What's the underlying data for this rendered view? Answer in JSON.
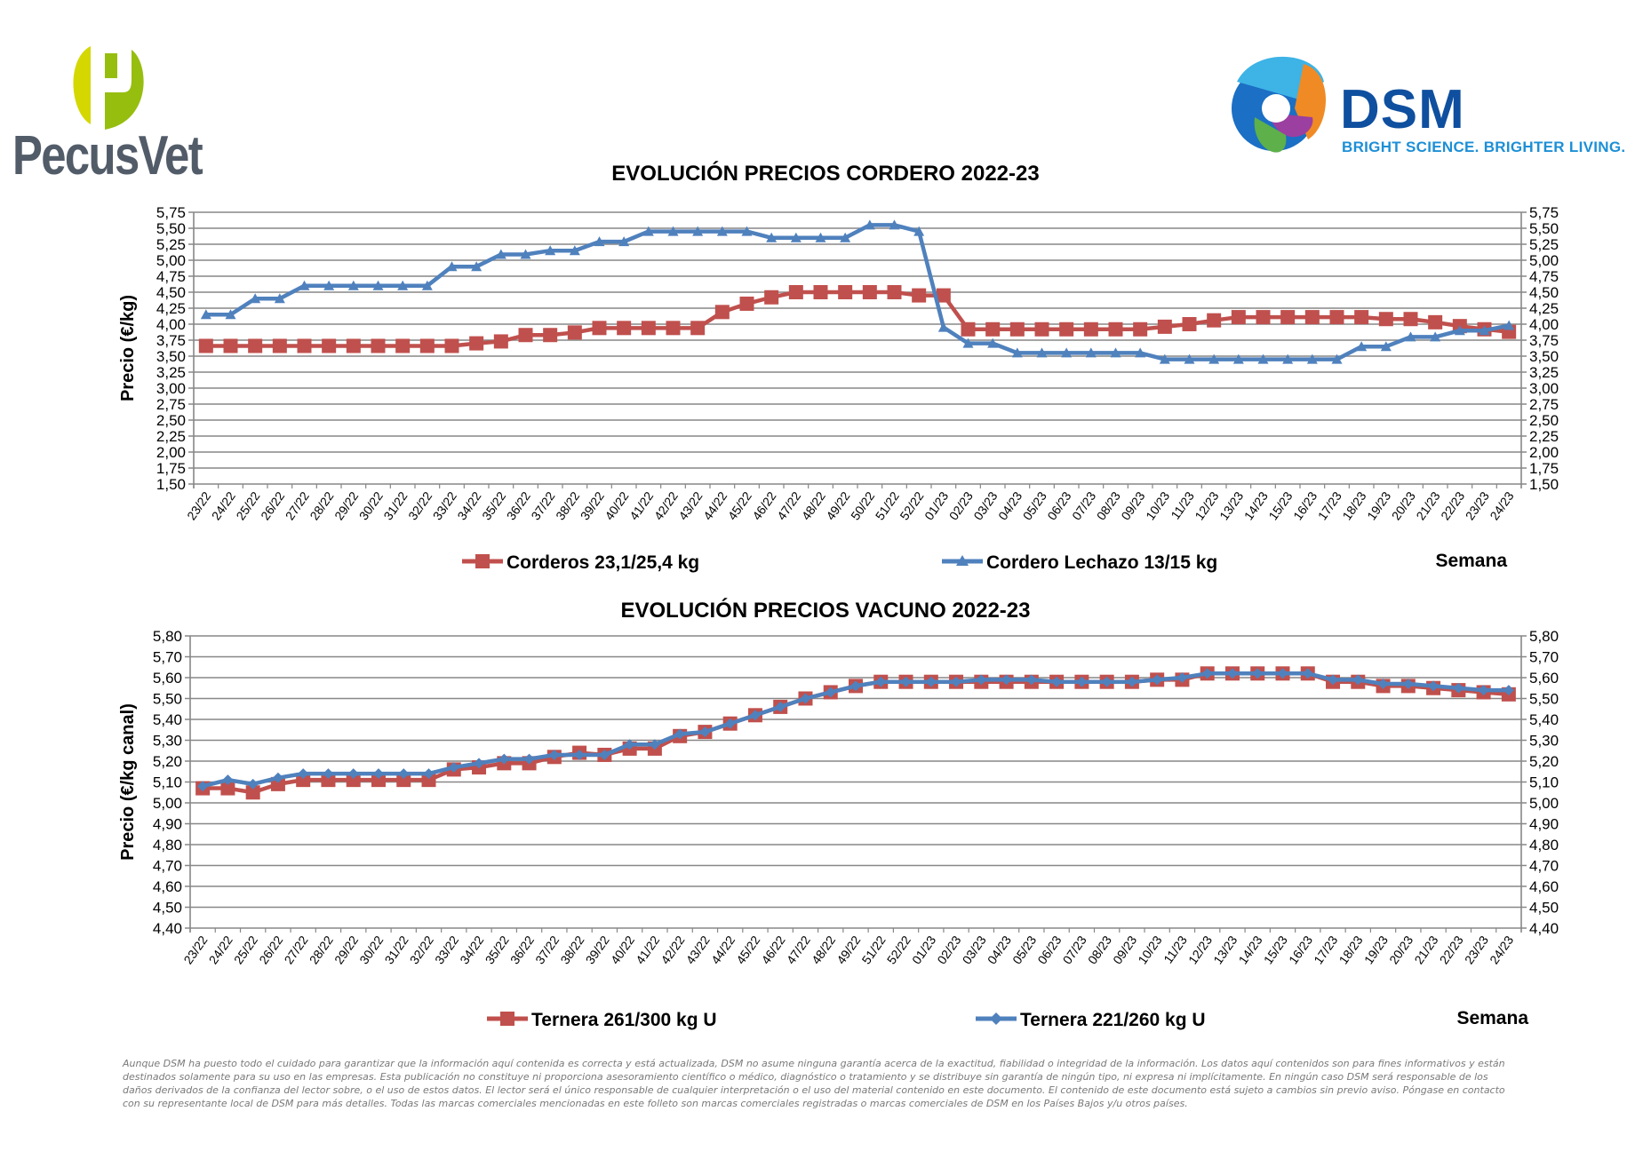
{
  "logos": {
    "left": {
      "name": "PecusVet",
      "colors": {
        "light": "#d4d800",
        "dark": "#96be0f",
        "text": "#525c69"
      }
    },
    "right": {
      "name": "DSM",
      "tagline": "BRIGHT SCIENCE. BRIGHTER LIVING.",
      "colors": {
        "text": "#0f4f9f",
        "tagline": "#1d8fd6"
      }
    }
  },
  "chart_data": [
    {
      "type": "line",
      "title": "EVOLUCIÓN PRECIOS CORDERO 2022-23",
      "ylabel": "Precio (€/kg)",
      "xlabel": "Semana",
      "ylim": [
        1.5,
        5.75
      ],
      "ystep": 0.25,
      "yticks": [
        "1,50",
        "1,75",
        "2,00",
        "2,25",
        "2,50",
        "2,75",
        "3,00",
        "3,25",
        "3,50",
        "3,75",
        "4,00",
        "4,25",
        "4,50",
        "4,75",
        "5,00",
        "5,25",
        "5,50",
        "5,75"
      ],
      "grid": true,
      "legend_position": "bottom",
      "categories": [
        "23/22",
        "24/22",
        "25/22",
        "26/22",
        "27/22",
        "28/22",
        "29/22",
        "30/22",
        "31/22",
        "32/22",
        "33/22",
        "34/22",
        "35/22",
        "36/22",
        "37/22",
        "38/22",
        "39/22",
        "40/22",
        "41/22",
        "42/22",
        "43/22",
        "44/22",
        "45/22",
        "46/22",
        "47/22",
        "48/22",
        "49/22",
        "50/22",
        "51/22",
        "52/22",
        "01/23",
        "02/23",
        "03/23",
        "04/23",
        "05/23",
        "06/23",
        "07/23",
        "08/23",
        "09/23",
        "10/23",
        "11/23",
        "12/23",
        "13/23",
        "14/23",
        "15/23",
        "16/23",
        "17/23",
        "18/23",
        "19/23",
        "20/23",
        "21/23",
        "22/23",
        "23/23",
        "24/23"
      ],
      "series": [
        {
          "name": "Corderos 23,1/25,4 kg",
          "color": "#c0504d",
          "marker": "square",
          "values": [
            3.66,
            3.66,
            3.66,
            3.66,
            3.66,
            3.66,
            3.66,
            3.66,
            3.66,
            3.66,
            3.66,
            3.7,
            3.73,
            3.83,
            3.83,
            3.87,
            3.94,
            3.94,
            3.94,
            3.94,
            3.94,
            4.19,
            4.32,
            4.42,
            4.5,
            4.5,
            4.5,
            4.5,
            4.5,
            4.45,
            4.45,
            3.92,
            3.92,
            3.92,
            3.92,
            3.92,
            3.92,
            3.92,
            3.92,
            3.96,
            4.0,
            4.06,
            4.11,
            4.11,
            4.11,
            4.11,
            4.11,
            4.11,
            4.08,
            4.08,
            4.03,
            3.97,
            3.92,
            3.88
          ]
        },
        {
          "name": "Cordero Lechazo 13/15 kg",
          "color": "#4f81bd",
          "marker": "triangle",
          "values": [
            4.15,
            4.15,
            4.4,
            4.4,
            4.6,
            4.6,
            4.6,
            4.6,
            4.6,
            4.6,
            4.9,
            4.9,
            5.09,
            5.09,
            5.15,
            5.15,
            5.29,
            5.29,
            5.45,
            5.45,
            5.45,
            5.45,
            5.45,
            5.35,
            5.35,
            5.35,
            5.35,
            5.55,
            5.55,
            5.45,
            3.95,
            3.7,
            3.7,
            3.55,
            3.55,
            3.55,
            3.55,
            3.55,
            3.55,
            3.45,
            3.45,
            3.45,
            3.45,
            3.45,
            3.45,
            3.45,
            3.45,
            3.65,
            3.65,
            3.8,
            3.8,
            3.9,
            3.9,
            3.98
          ]
        }
      ]
    },
    {
      "type": "line",
      "title": "EVOLUCIÓN PRECIOS VACUNO 2022-23",
      "ylabel": "Precio (€/kg canal)",
      "xlabel": "Semana",
      "ylim": [
        4.4,
        5.8
      ],
      "ystep": 0.1,
      "yticks": [
        "4,40",
        "4,50",
        "4,60",
        "4,70",
        "4,80",
        "4,90",
        "5,00",
        "5,10",
        "5,20",
        "5,30",
        "5,40",
        "5,50",
        "5,60",
        "5,70",
        "5,80"
      ],
      "grid": true,
      "legend_position": "bottom",
      "categories": [
        "23/22",
        "24/22",
        "25/22",
        "26/22",
        "27/22",
        "28/22",
        "29/22",
        "30/22",
        "31/22",
        "32/22",
        "33/22",
        "34/22",
        "35/22",
        "36/22",
        "37/22",
        "38/22",
        "39/22",
        "40/22",
        "41/22",
        "42/22",
        "43/22",
        "44/22",
        "45/22",
        "46/22",
        "47/22",
        "48/22",
        "49/22",
        "51/22",
        "52/22",
        "01/23",
        "02/23",
        "03/23",
        "04/23",
        "05/23",
        "06/23",
        "07/23",
        "08/23",
        "09/23",
        "10/23",
        "11/23",
        "12/23",
        "13/23",
        "14/23",
        "15/23",
        "16/23",
        "17/23",
        "18/23",
        "19/23",
        "20/23",
        "21/23",
        "22/23",
        "23/23",
        "24/23"
      ],
      "series": [
        {
          "name": "Ternera 261/300 kg U",
          "color": "#c0504d",
          "marker": "square",
          "values": [
            5.07,
            5.07,
            5.05,
            5.09,
            5.11,
            5.11,
            5.11,
            5.11,
            5.11,
            5.11,
            5.16,
            5.17,
            5.19,
            5.19,
            5.22,
            5.24,
            5.23,
            5.26,
            5.26,
            5.32,
            5.34,
            5.38,
            5.42,
            5.46,
            5.5,
            5.53,
            5.56,
            5.58,
            5.58,
            5.58,
            5.58,
            5.58,
            5.58,
            5.58,
            5.58,
            5.58,
            5.58,
            5.58,
            5.59,
            5.59,
            5.62,
            5.62,
            5.62,
            5.62,
            5.62,
            5.58,
            5.58,
            5.56,
            5.56,
            5.55,
            5.54,
            5.53,
            5.52
          ]
        },
        {
          "name": "Ternera 221/260 kg U",
          "color": "#4f81bd",
          "marker": "diamond",
          "values": [
            5.08,
            5.11,
            5.09,
            5.12,
            5.14,
            5.14,
            5.14,
            5.14,
            5.14,
            5.14,
            5.17,
            5.19,
            5.21,
            5.21,
            5.23,
            5.23,
            5.23,
            5.28,
            5.28,
            5.33,
            5.34,
            5.38,
            5.42,
            5.46,
            5.5,
            5.53,
            5.56,
            5.58,
            5.58,
            5.58,
            5.58,
            5.59,
            5.59,
            5.59,
            5.58,
            5.58,
            5.58,
            5.58,
            5.59,
            5.6,
            5.62,
            5.62,
            5.62,
            5.62,
            5.62,
            5.59,
            5.59,
            5.57,
            5.57,
            5.56,
            5.55,
            5.54,
            5.54
          ]
        }
      ]
    }
  ],
  "disclaimer": "Aunque DSM ha puesto todo el cuidado para garantizar que la información aquí contenida es correcta y está actualizada, DSM no asume ninguna garantía acerca de la exactitud, fiabilidad o integridad de la información. Los datos aquí contenidos son para fines informativos y están destinados solamente para su uso en las empresas. Esta publicación no constituye ni proporciona asesoramiento científico o médico, diagnóstico o tratamiento y se distribuye sin garantía de ningún tipo, ni expresa ni implícitamente. En ningún caso DSM será responsable de los daños derivados de la confianza del lector sobre, o el uso de estos datos. El lector será el único responsable de cualquier interpretación o el uso del material contenido en este documento. El contenido de este documento está sujeto a cambios sin previo aviso. Póngase en contacto con su representante local de DSM para más detalles. Todas las marcas comerciales mencionadas en este folleto son marcas comerciales registradas o marcas comerciales de DSM en los Países Bajos y/u otros países."
}
